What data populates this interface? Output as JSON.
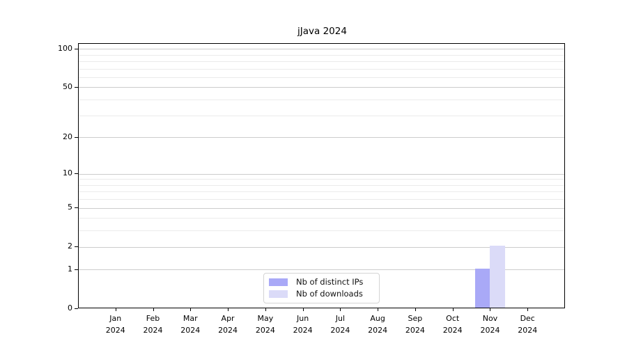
{
  "chart_data": {
    "type": "bar",
    "title": "jJava 2024",
    "categories": [
      "Jan 2024",
      "Feb 2024",
      "Mar 2024",
      "Apr 2024",
      "May 2024",
      "Jun 2024",
      "Jul 2024",
      "Aug 2024",
      "Sep 2024",
      "Oct 2024",
      "Nov 2024",
      "Dec 2024"
    ],
    "x_labels": [
      {
        "month": "Jan",
        "year": "2024"
      },
      {
        "month": "Feb",
        "year": "2024"
      },
      {
        "month": "Mar",
        "year": "2024"
      },
      {
        "month": "Apr",
        "year": "2024"
      },
      {
        "month": "May",
        "year": "2024"
      },
      {
        "month": "Jun",
        "year": "2024"
      },
      {
        "month": "Jul",
        "year": "2024"
      },
      {
        "month": "Aug",
        "year": "2024"
      },
      {
        "month": "Sep",
        "year": "2024"
      },
      {
        "month": "Oct",
        "year": "2024"
      },
      {
        "month": "Nov",
        "year": "2024"
      },
      {
        "month": "Dec",
        "year": "2024"
      }
    ],
    "series": [
      {
        "name": "Nb of distinct IPs",
        "color": "#a9a9f7",
        "values": [
          0,
          0,
          0,
          0,
          0,
          0,
          0,
          0,
          0,
          0,
          1,
          0
        ]
      },
      {
        "name": "Nb of downloads",
        "color": "#dbdbf8",
        "values": [
          0,
          0,
          0,
          0,
          0,
          0,
          0,
          0,
          0,
          0,
          2,
          0
        ]
      }
    ],
    "yscale": "log1p",
    "ylim": [
      0,
      110
    ],
    "y_major_ticks": [
      0,
      1,
      2,
      5,
      10,
      20,
      50,
      100
    ],
    "y_minor_gridlines": [
      3,
      4,
      6,
      7,
      8,
      9,
      30,
      40,
      60,
      70,
      80,
      90
    ],
    "grid": "horizontal",
    "legend_position": "lower-center",
    "colors": {
      "axis": "#000000",
      "grid_major": "#cccccc",
      "grid_minor": "#ebebeb",
      "text": "#000000",
      "legend_border": "#d4d4d4"
    }
  }
}
